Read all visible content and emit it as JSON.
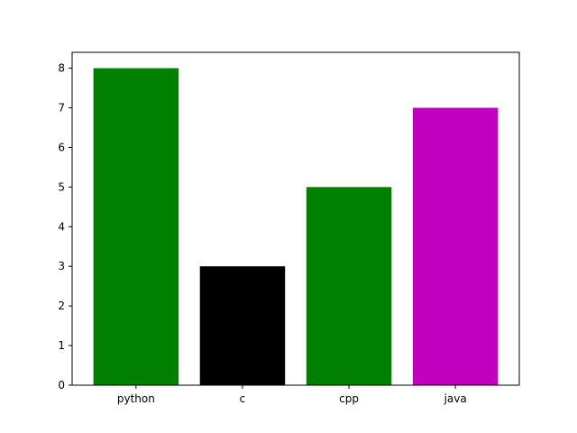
{
  "chart_data": {
    "type": "bar",
    "categories": [
      "python",
      "c",
      "cpp",
      "java"
    ],
    "values": [
      8,
      3,
      5,
      7
    ],
    "bar_colors": [
      "#008000",
      "#000000",
      "#008000",
      "#bf00bf"
    ],
    "title": "",
    "xlabel": "",
    "ylabel": "",
    "ylim": [
      0,
      8.4
    ],
    "yticks": [
      0,
      1,
      2,
      3,
      4,
      5,
      6,
      7,
      8
    ],
    "grid": false,
    "legend": "none"
  }
}
